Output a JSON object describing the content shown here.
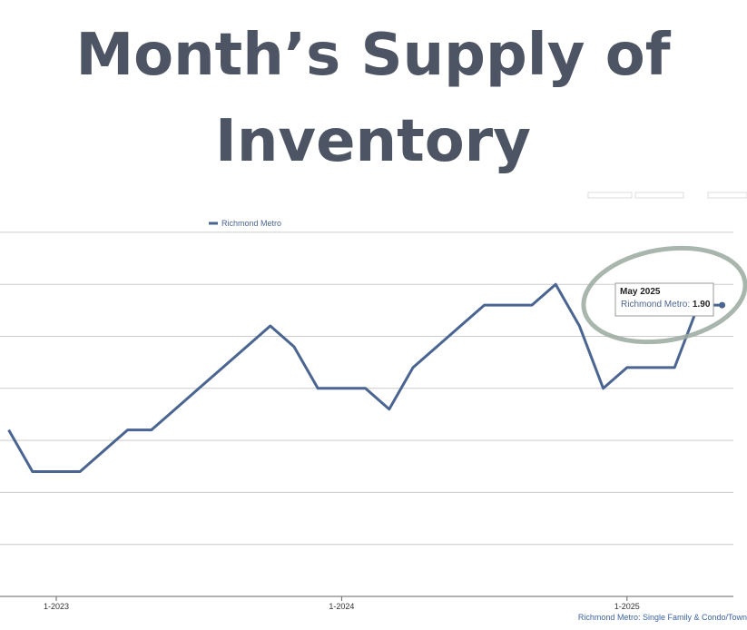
{
  "title_lines": [
    "Month’s Supply of",
    "Inventory"
  ],
  "chart_data": {
    "type": "line",
    "x": [
      "11-2022",
      "12-2022",
      "1-2023",
      "2-2023",
      "3-2023",
      "4-2023",
      "5-2023",
      "6-2023",
      "7-2023",
      "8-2023",
      "9-2023",
      "10-2023",
      "11-2023",
      "12-2023",
      "1-2024",
      "2-2024",
      "3-2024",
      "4-2024",
      "5-2024",
      "6-2024",
      "7-2024",
      "8-2024",
      "9-2024",
      "10-2024",
      "11-2024",
      "12-2024",
      "1-2025",
      "2-2025",
      "3-2025",
      "4-2025",
      "5-2025"
    ],
    "series": [
      {
        "name": "Richmond Metro",
        "color": "#4a6592",
        "values": [
          1.3,
          1.1,
          1.1,
          1.1,
          1.2,
          1.3,
          1.3,
          1.4,
          1.5,
          1.6,
          1.7,
          1.8,
          1.7,
          1.5,
          1.5,
          1.5,
          1.4,
          1.6,
          1.7,
          1.8,
          1.9,
          1.9,
          1.9,
          2.0,
          1.8,
          1.5,
          1.6,
          1.6,
          1.6,
          1.9,
          1.9
        ]
      }
    ],
    "ylim": [
      0.5,
      2.5
    ],
    "yticks": [
      0.5,
      0.75,
      1.0,
      1.25,
      1.5,
      1.75,
      2.0,
      2.25
    ],
    "xticks": [
      "1-2023",
      "1-2024",
      "1-2025"
    ],
    "grid": true,
    "tooltip": {
      "title": "May 2025",
      "series_label": "Richmond Metro:",
      "value_label": "1.90"
    },
    "footer": "Richmond Metro: Single Family & Condo/Town"
  }
}
